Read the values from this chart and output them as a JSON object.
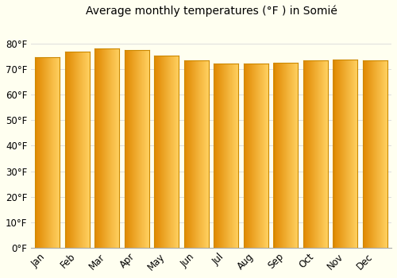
{
  "title": "Average monthly temperatures (°F ) in Somié",
  "months": [
    "Jan",
    "Feb",
    "Mar",
    "Apr",
    "May",
    "Jun",
    "Jul",
    "Aug",
    "Sep",
    "Oct",
    "Nov",
    "Dec"
  ],
  "values": [
    74.8,
    77.0,
    78.1,
    77.5,
    75.5,
    73.4,
    72.3,
    72.3,
    72.7,
    73.4,
    73.9,
    73.4
  ],
  "ylim": [
    0,
    88
  ],
  "yticks": [
    0,
    10,
    20,
    30,
    40,
    50,
    60,
    70,
    80
  ],
  "ytick_labels": [
    "0°F",
    "10°F",
    "20°F",
    "30°F",
    "40°F",
    "50°F",
    "60°F",
    "70°F",
    "80°F"
  ],
  "bar_color_left": "#E08800",
  "bar_color_right": "#FFD060",
  "bar_edge_color": "#CC8800",
  "background_color": "#FFFFF0",
  "grid_color": "#dddddd",
  "title_fontsize": 10,
  "tick_fontsize": 8.5,
  "bar_width": 0.82
}
